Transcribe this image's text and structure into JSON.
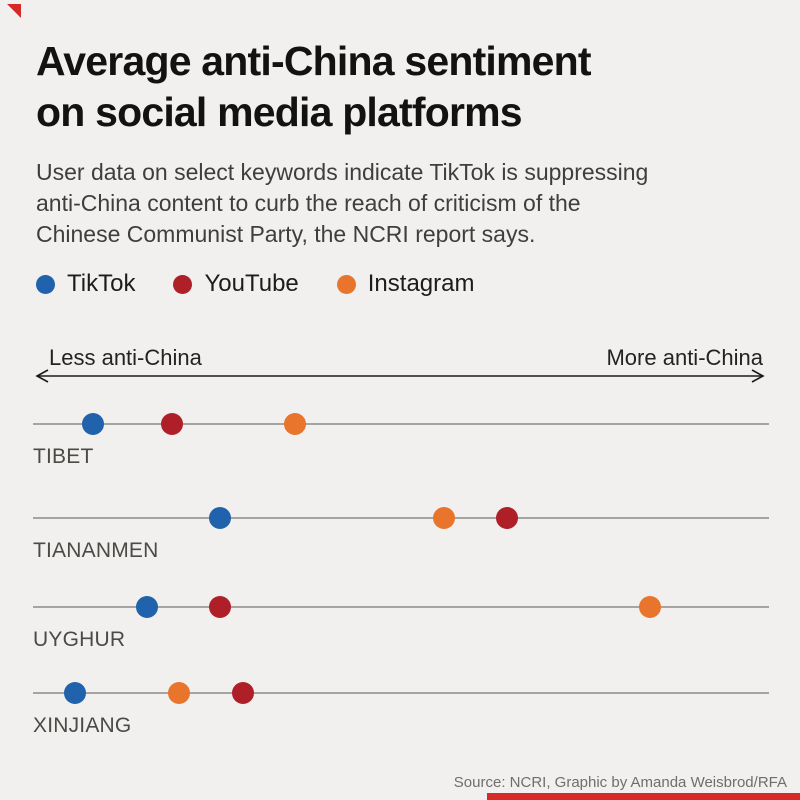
{
  "page": {
    "background_color": "#f1f0ee",
    "accent_red": "#d62a28"
  },
  "header": {
    "title_lines": [
      "Average anti-China sentiment",
      "on social media platforms"
    ],
    "subtitle_lines": [
      "User data on select keywords indicate TikTok is suppressing",
      "anti-China content to curb the reach of criticism of the",
      "Chinese Communist Party, the NCRI report says."
    ]
  },
  "legend": {
    "items": [
      {
        "label": "TikTok",
        "color": "#2062ab"
      },
      {
        "label": "YouTube",
        "color": "#ae1f28"
      },
      {
        "label": "Instagram",
        "color": "#e8752b"
      }
    ]
  },
  "axis": {
    "left_label": "Less anti-China",
    "right_label": "More anti-China"
  },
  "source": "Source: NCRI, Graphic by Amanda Weisbrod/RFA",
  "chart_data": {
    "type": "scatter",
    "title": "Average anti-China sentiment on social media platforms",
    "x_axis": {
      "min_label": "Less anti-China",
      "max_label": "More anti-China",
      "scale": "relative 0-1, no numeric ticks shown"
    },
    "legend_position": "top",
    "grid": false,
    "series_colors": {
      "TikTok": "#2062ab",
      "YouTube": "#ae1f28",
      "Instagram": "#e8752b"
    },
    "rows": [
      {
        "keyword": "TIBET",
        "points": [
          {
            "platform": "TikTok",
            "value": 0.082
          },
          {
            "platform": "YouTube",
            "value": 0.189
          },
          {
            "platform": "Instagram",
            "value": 0.356
          }
        ]
      },
      {
        "keyword": "TIANANMEN",
        "points": [
          {
            "platform": "TikTok",
            "value": 0.254
          },
          {
            "platform": "Instagram",
            "value": 0.558
          },
          {
            "platform": "YouTube",
            "value": 0.644
          }
        ]
      },
      {
        "keyword": "UYGHUR",
        "points": [
          {
            "platform": "TikTok",
            "value": 0.155
          },
          {
            "platform": "YouTube",
            "value": 0.254
          },
          {
            "platform": "Instagram",
            "value": 0.838
          }
        ]
      },
      {
        "keyword": "XINJIANG",
        "points": [
          {
            "platform": "TikTok",
            "value": 0.057
          },
          {
            "platform": "Instagram",
            "value": 0.198
          },
          {
            "platform": "YouTube",
            "value": 0.285
          }
        ]
      }
    ]
  }
}
